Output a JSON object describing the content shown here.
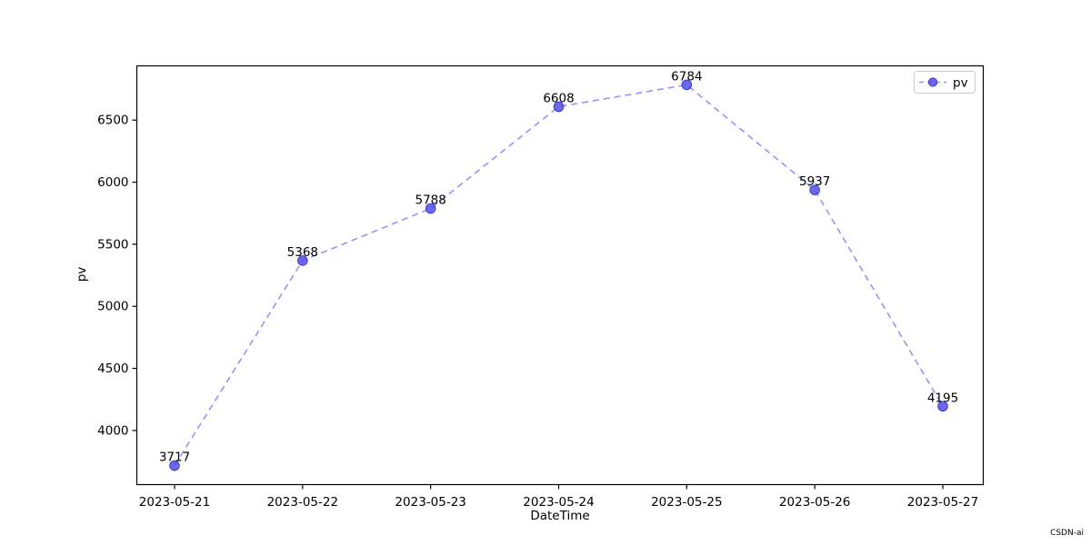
{
  "watermark": "CSDN-ai",
  "chart_data": {
    "type": "line",
    "title": "",
    "xlabel": "DateTime",
    "ylabel": "pv",
    "categories": [
      "2023-05-21",
      "2023-05-22",
      "2023-05-23",
      "2023-05-24",
      "2023-05-25",
      "2023-05-26",
      "2023-05-27"
    ],
    "series": [
      {
        "name": "pv",
        "values": [
          3717,
          5368,
          5788,
          6608,
          6784,
          5937,
          4195
        ]
      }
    ],
    "data_labels": [
      "3717",
      "5368",
      "5788",
      "6608",
      "6784",
      "5937",
      "4195"
    ],
    "yticks": [
      4000,
      4500,
      5000,
      5500,
      6000,
      6500
    ],
    "ylim": [
      3564,
      6937
    ],
    "grid": false,
    "line_style": "dashed",
    "marker": "circle",
    "legend": {
      "position": "upper right",
      "entries": [
        "pv"
      ]
    },
    "colors": {
      "line": "#9595f2",
      "marker": "#514fe4",
      "marker_edge": "#3f3dd2",
      "data_label": "#ff0000",
      "axis": "#000000",
      "legend_border": "#cccccc",
      "watermark": "#cccccc"
    }
  }
}
